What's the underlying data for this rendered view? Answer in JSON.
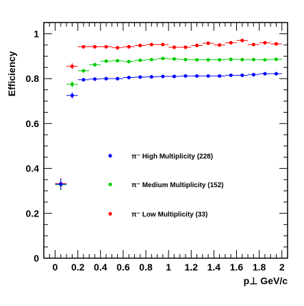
{
  "chart_data": {
    "type": "scatter",
    "ylabel": "Efficiency",
    "xlabel": "p⊥ GeV/c",
    "xlim": [
      -0.1,
      2.05
    ],
    "ylim": [
      0,
      1.05
    ],
    "x_ticks": [
      "0",
      "0.2",
      "0.4",
      "0.6",
      "0.8",
      "1",
      "1.2",
      "1.4",
      "1.6",
      "1.8",
      "2"
    ],
    "x_tick_values": [
      0,
      0.2,
      0.4,
      0.6,
      0.8,
      1.0,
      1.2,
      1.4,
      1.6,
      1.8,
      2.0
    ],
    "y_ticks": [
      "0",
      "0.2",
      "0.4",
      "0.6",
      "0.8",
      "1"
    ],
    "y_tick_values": [
      0,
      0.2,
      0.4,
      0.6,
      0.8,
      1.0
    ],
    "legend_position": "center",
    "x": [
      0.15,
      0.25,
      0.35,
      0.45,
      0.55,
      0.65,
      0.75,
      0.85,
      0.95,
      1.05,
      1.15,
      1.25,
      1.35,
      1.45,
      1.55,
      1.65,
      1.75,
      1.85,
      1.95
    ],
    "series": [
      {
        "name": "π⁻ High Multiplicity (228)",
        "color": "#0000ff",
        "values": [
          0.725,
          0.795,
          0.798,
          0.8,
          0.8,
          0.805,
          0.807,
          0.808,
          0.81,
          0.81,
          0.812,
          0.812,
          0.812,
          0.812,
          0.815,
          0.815,
          0.818,
          0.822,
          0.822
        ]
      },
      {
        "name": "π⁻ Medium Multiplicity (152)",
        "color": "#00cc00",
        "values": [
          0.775,
          0.835,
          0.862,
          0.878,
          0.88,
          0.876,
          0.882,
          0.885,
          0.89,
          0.888,
          0.885,
          0.884,
          0.884,
          0.884,
          0.886,
          0.885,
          0.885,
          0.884,
          0.886
        ]
      },
      {
        "name": "π⁻ Low Multiplicity (33)",
        "color": "#ff0000",
        "values": [
          0.855,
          0.942,
          0.942,
          0.942,
          0.938,
          0.942,
          0.948,
          0.952,
          0.952,
          0.94,
          0.94,
          0.948,
          0.958,
          0.95,
          0.96,
          0.97,
          0.952,
          0.96,
          0.955
        ]
      }
    ],
    "extra_points": [
      {
        "x": 0.05,
        "y": 0.332,
        "color": "#ff0000"
      },
      {
        "x": 0.05,
        "y": 0.328,
        "color": "#00cc00"
      },
      {
        "x": 0.05,
        "y": 0.33,
        "color": "#0000ff"
      }
    ]
  }
}
